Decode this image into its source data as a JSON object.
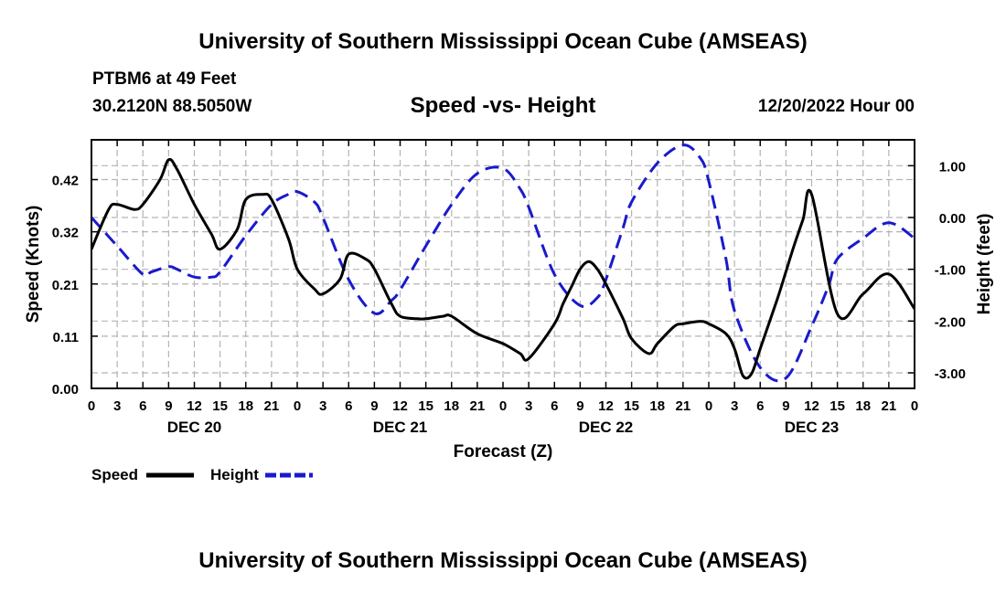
{
  "header": {
    "title": "University of Southern Mississippi Ocean Cube (AMSEAS)",
    "station": "PTBM6 at 49 Feet",
    "location": "30.2120N  88.5050W",
    "subtitle": "Speed -vs- Height",
    "date": "12/20/2022 Hour 00"
  },
  "footer": {
    "title": "University of Southern Mississippi Ocean Cube (AMSEAS)"
  },
  "legend": {
    "speed_label": "Speed",
    "height_label": "Height"
  },
  "colors": {
    "speed": "#000000",
    "height": "#1a1acc",
    "grid": "#b4b4b4"
  },
  "chart_data": {
    "type": "line",
    "title": "Speed -vs- Height",
    "xlabel": "Forecast (Z)",
    "ylabel": "Speed (Knots)",
    "y2label": "Height (feet)",
    "xlim": [
      0,
      96
    ],
    "ylim": [
      0,
      0.5
    ],
    "y2lim": [
      -3.3,
      1.5
    ],
    "x_ticks": [
      0,
      3,
      6,
      9,
      12,
      15,
      18,
      21,
      24,
      27,
      30,
      33,
      36,
      39,
      42,
      45,
      48,
      51,
      54,
      57,
      60,
      63,
      66,
      69,
      72,
      75,
      78,
      81,
      84,
      87,
      90,
      93,
      96
    ],
    "x_tick_labels": [
      "0",
      "3",
      "6",
      "9",
      "12",
      "15",
      "18",
      "21",
      "0",
      "3",
      "6",
      "9",
      "12",
      "15",
      "18",
      "21",
      "0",
      "3",
      "6",
      "9",
      "12",
      "15",
      "18",
      "21",
      "0",
      "3",
      "6",
      "9",
      "12",
      "15",
      "18",
      "21",
      "0"
    ],
    "day_labels": [
      {
        "x": 12,
        "label": "DEC 20"
      },
      {
        "x": 36,
        "label": "DEC 21"
      },
      {
        "x": 60,
        "label": "DEC 22"
      },
      {
        "x": 84,
        "label": "DEC 23"
      }
    ],
    "y_ticks": [
      0,
      0.105,
      0.21,
      0.315,
      0.42
    ],
    "y_tick_labels": [
      "0.00",
      "0.11",
      "0.21",
      "0.32",
      "0.42"
    ],
    "y2_ticks": [
      -3,
      -2,
      -1,
      0,
      1
    ],
    "y2_tick_labels": [
      "-3.00",
      "-2.00",
      "-1.00",
      "0.00",
      "1.00"
    ],
    "series": [
      {
        "name": "Speed",
        "axis": "left",
        "style": "solid",
        "x": [
          0,
          2,
          3,
          5,
          6,
          8,
          9,
          10,
          12,
          14,
          15,
          17,
          18,
          20,
          21,
          23,
          24,
          26,
          27,
          29,
          30,
          32,
          33,
          35,
          36,
          38,
          39,
          41,
          42,
          45,
          48,
          50,
          51,
          54,
          55,
          56,
          57,
          58,
          59,
          60,
          62,
          63,
          65,
          66,
          68,
          69,
          71,
          72,
          74,
          75,
          76,
          77,
          78,
          80,
          81,
          82,
          83,
          84,
          87,
          90,
          93,
          96
        ],
        "y": [
          0.28,
          0.36,
          0.37,
          0.36,
          0.37,
          0.42,
          0.46,
          0.44,
          0.37,
          0.31,
          0.28,
          0.32,
          0.38,
          0.39,
          0.38,
          0.3,
          0.24,
          0.2,
          0.19,
          0.22,
          0.27,
          0.26,
          0.24,
          0.17,
          0.145,
          0.14,
          0.14,
          0.145,
          0.145,
          0.11,
          0.09,
          0.07,
          0.06,
          0.13,
          0.17,
          0.205,
          0.24,
          0.255,
          0.24,
          0.21,
          0.14,
          0.1,
          0.07,
          0.09,
          0.125,
          0.13,
          0.135,
          0.13,
          0.11,
          0.08,
          0.025,
          0.03,
          0.08,
          0.18,
          0.235,
          0.29,
          0.34,
          0.39,
          0.15,
          0.19,
          0.23,
          0.16
        ]
      },
      {
        "name": "Height",
        "axis": "right",
        "style": "dashed",
        "x": [
          0,
          3,
          6,
          7,
          9,
          10,
          12,
          14,
          15,
          18,
          21,
          23,
          24,
          26,
          27,
          30,
          33,
          35,
          36,
          39,
          42,
          45,
          48,
          50,
          51,
          54,
          57,
          59,
          60,
          62,
          63,
          66,
          69,
          71,
          72,
          74,
          75,
          78,
          81,
          84,
          86,
          87,
          90,
          93,
          96
        ],
        "y": [
          0,
          -0.55,
          -1.1,
          -1.05,
          -0.95,
          -1,
          -1.15,
          -1.15,
          -1.05,
          -0.35,
          0.25,
          0.45,
          0.5,
          0.3,
          0,
          -1.2,
          -1.85,
          -1.6,
          -1.4,
          -0.55,
          0.25,
          0.85,
          0.95,
          0.55,
          0.2,
          -1.1,
          -1.7,
          -1.55,
          -1.2,
          -0.2,
          0.3,
          1.05,
          1.4,
          1.15,
          0.7,
          -0.8,
          -1.8,
          -2.9,
          -3.1,
          -2.1,
          -1.3,
          -0.8,
          -0.4,
          -0.1,
          -0.4
        ]
      }
    ]
  }
}
